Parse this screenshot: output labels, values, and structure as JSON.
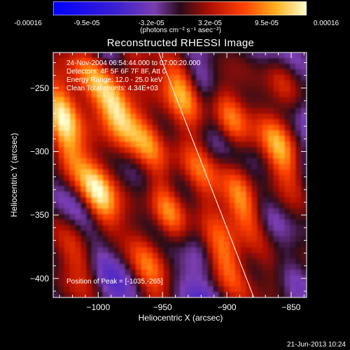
{
  "colorbar": {
    "ticks": [
      "-0.00016",
      "-9.5e-05",
      "-3.2e-05",
      "3.2e-05",
      "9.5e-05",
      "0.00016"
    ],
    "unit_label": "(photons cm⁻² s⁻¹ asec⁻²)",
    "range": [
      -0.00016,
      0.00016
    ]
  },
  "chart_data": {
    "type": "heatmap",
    "title": "Reconstructed RHESSI Image",
    "xlabel": "Heliocentric X (arcsec)",
    "ylabel": "Heliocentric Y (arcsec)",
    "xlim": [
      -1035,
      -838
    ],
    "ylim": [
      -415,
      -222
    ],
    "xticks": [
      -1000,
      -950,
      -900,
      -850
    ],
    "yticks": [
      -250,
      -300,
      -350,
      -400
    ],
    "limb_line": [
      [
        -953,
        -222
      ],
      [
        -879,
        -415
      ]
    ],
    "colormap": "rhessi",
    "value_range": [
      -0.00016,
      0.00016
    ],
    "blobs": [
      {
        "x": -985,
        "y": -268,
        "v": 1.0
      },
      {
        "x": -1000,
        "y": -335,
        "v": 0.95
      },
      {
        "x": -1025,
        "y": -300,
        "v": 0.7
      },
      {
        "x": -1030,
        "y": -265,
        "v": 0.85
      },
      {
        "x": -962,
        "y": -292,
        "v": 0.8
      },
      {
        "x": -945,
        "y": -348,
        "v": 0.85
      },
      {
        "x": -935,
        "y": -250,
        "v": 0.8
      },
      {
        "x": -898,
        "y": -272,
        "v": 0.75
      },
      {
        "x": -888,
        "y": -340,
        "v": 0.95
      },
      {
        "x": -858,
        "y": -300,
        "v": 0.7
      },
      {
        "x": -902,
        "y": -385,
        "v": 0.6
      },
      {
        "x": -960,
        "y": -395,
        "v": 0.5
      },
      {
        "x": -1015,
        "y": -385,
        "v": 0.5
      },
      {
        "x": -865,
        "y": -395,
        "v": 0.45
      },
      {
        "x": -920,
        "y": -315,
        "v": 0.45
      },
      {
        "x": -1005,
        "y": -240,
        "v": 0.55
      },
      {
        "x": -975,
        "y": -225,
        "v": 0.4
      },
      {
        "x": -855,
        "y": -248,
        "v": 0.55
      }
    ],
    "annotations": [
      "24-Nov-2004 06:54:44.000 to 07:00:20.000",
      "Detectors: 4F 5F 6F 7F 8F, Att 0",
      "Energy Range: 12.0 - 25.0 keV",
      "Clean     Total counts: 4.34E+03"
    ],
    "peak_label": "Position of Peak = [-1035,-265]"
  },
  "footer_date": "21-Jun-2013 10:24"
}
